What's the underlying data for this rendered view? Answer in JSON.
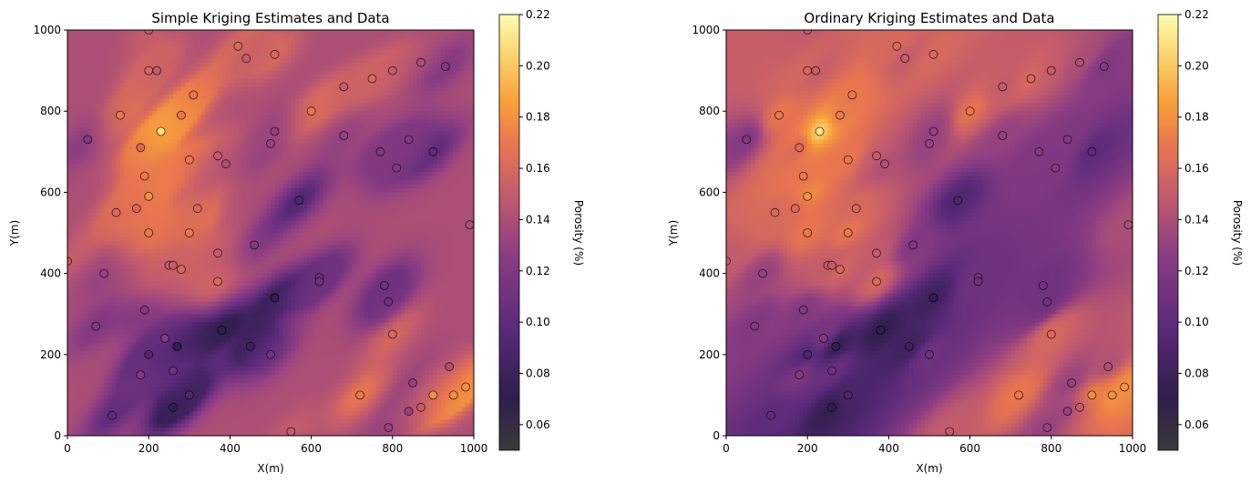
{
  "chart_data": [
    {
      "type": "heatmap",
      "title": "Simple Kriging Estimates and Data",
      "xlabel": "X(m)",
      "ylabel": "Y(m)",
      "xlim": [
        0,
        1000
      ],
      "ylim": [
        0,
        1000
      ],
      "xticks": [
        "0",
        "200",
        "400",
        "600",
        "800",
        "1000"
      ],
      "yticks": [
        "0",
        "200",
        "400",
        "600",
        "800",
        "1000"
      ],
      "mean": 0.14,
      "colorbar": {
        "label": "Porosity (%)",
        "range": [
          0.05,
          0.22
        ],
        "ticks": [
          "0.06",
          "0.08",
          "0.10",
          "0.12",
          "0.14",
          "0.16",
          "0.18",
          "0.20",
          "0.22"
        ]
      }
    },
    {
      "type": "heatmap",
      "title": "Ordinary Kriging Estimates and Data",
      "xlabel": "X(m)",
      "ylabel": "Y(m)",
      "xlim": [
        0,
        1000
      ],
      "ylim": [
        0,
        1000
      ],
      "xticks": [
        "0",
        "200",
        "400",
        "600",
        "800",
        "1000"
      ],
      "yticks": [
        "0",
        "200",
        "400",
        "600",
        "800",
        "1000"
      ],
      "colorbar": {
        "label": "Porosity (%)",
        "range": [
          0.05,
          0.22
        ],
        "ticks": [
          "0.06",
          "0.08",
          "0.10",
          "0.12",
          "0.14",
          "0.16",
          "0.18",
          "0.20",
          "0.22"
        ]
      }
    }
  ],
  "wells": [
    {
      "x": 200,
      "y": 1000,
      "v": 0.15
    },
    {
      "x": 420,
      "y": 960,
      "v": 0.16
    },
    {
      "x": 510,
      "y": 940,
      "v": 0.16
    },
    {
      "x": 440,
      "y": 930,
      "v": 0.15
    },
    {
      "x": 200,
      "y": 900,
      "v": 0.16
    },
    {
      "x": 220,
      "y": 900,
      "v": 0.15
    },
    {
      "x": 870,
      "y": 920,
      "v": 0.14
    },
    {
      "x": 930,
      "y": 910,
      "v": 0.12
    },
    {
      "x": 800,
      "y": 900,
      "v": 0.15
    },
    {
      "x": 750,
      "y": 880,
      "v": 0.16
    },
    {
      "x": 680,
      "y": 860,
      "v": 0.15
    },
    {
      "x": 130,
      "y": 790,
      "v": 0.17
    },
    {
      "x": 280,
      "y": 790,
      "v": 0.17
    },
    {
      "x": 310,
      "y": 840,
      "v": 0.17
    },
    {
      "x": 600,
      "y": 800,
      "v": 0.17
    },
    {
      "x": 230,
      "y": 750,
      "v": 0.21
    },
    {
      "x": 50,
      "y": 730,
      "v": 0.12
    },
    {
      "x": 510,
      "y": 750,
      "v": 0.13
    },
    {
      "x": 500,
      "y": 720,
      "v": 0.13
    },
    {
      "x": 680,
      "y": 740,
      "v": 0.13
    },
    {
      "x": 840,
      "y": 730,
      "v": 0.12
    },
    {
      "x": 180,
      "y": 710,
      "v": 0.16
    },
    {
      "x": 770,
      "y": 700,
      "v": 0.12
    },
    {
      "x": 900,
      "y": 700,
      "v": 0.1
    },
    {
      "x": 300,
      "y": 680,
      "v": 0.17
    },
    {
      "x": 370,
      "y": 690,
      "v": 0.15
    },
    {
      "x": 390,
      "y": 670,
      "v": 0.14
    },
    {
      "x": 810,
      "y": 660,
      "v": 0.12
    },
    {
      "x": 190,
      "y": 640,
      "v": 0.17
    },
    {
      "x": 200,
      "y": 590,
      "v": 0.18
    },
    {
      "x": 570,
      "y": 580,
      "v": 0.09
    },
    {
      "x": 170,
      "y": 560,
      "v": 0.16
    },
    {
      "x": 120,
      "y": 550,
      "v": 0.16
    },
    {
      "x": 320,
      "y": 560,
      "v": 0.16
    },
    {
      "x": 990,
      "y": 520,
      "v": 0.14
    },
    {
      "x": 200,
      "y": 500,
      "v": 0.17
    },
    {
      "x": 300,
      "y": 500,
      "v": 0.17
    },
    {
      "x": 460,
      "y": 470,
      "v": 0.12
    },
    {
      "x": 370,
      "y": 450,
      "v": 0.15
    },
    {
      "x": 0,
      "y": 430,
      "v": 0.15
    },
    {
      "x": 250,
      "y": 420,
      "v": 0.15
    },
    {
      "x": 260,
      "y": 420,
      "v": 0.15
    },
    {
      "x": 280,
      "y": 410,
      "v": 0.16
    },
    {
      "x": 90,
      "y": 400,
      "v": 0.13
    },
    {
      "x": 620,
      "y": 390,
      "v": 0.11
    },
    {
      "x": 620,
      "y": 380,
      "v": 0.11
    },
    {
      "x": 370,
      "y": 380,
      "v": 0.16
    },
    {
      "x": 780,
      "y": 370,
      "v": 0.11
    },
    {
      "x": 510,
      "y": 340,
      "v": 0.08
    },
    {
      "x": 510,
      "y": 340,
      "v": 0.07
    },
    {
      "x": 790,
      "y": 330,
      "v": 0.11
    },
    {
      "x": 190,
      "y": 310,
      "v": 0.12
    },
    {
      "x": 70,
      "y": 270,
      "v": 0.12
    },
    {
      "x": 380,
      "y": 260,
      "v": 0.07
    },
    {
      "x": 380,
      "y": 260,
      "v": 0.07
    },
    {
      "x": 800,
      "y": 250,
      "v": 0.16
    },
    {
      "x": 240,
      "y": 240,
      "v": 0.12
    },
    {
      "x": 270,
      "y": 220,
      "v": 0.07
    },
    {
      "x": 270,
      "y": 220,
      "v": 0.07
    },
    {
      "x": 450,
      "y": 220,
      "v": 0.08
    },
    {
      "x": 200,
      "y": 200,
      "v": 0.09
    },
    {
      "x": 500,
      "y": 200,
      "v": 0.11
    },
    {
      "x": 940,
      "y": 170,
      "v": 0.14
    },
    {
      "x": 260,
      "y": 160,
      "v": 0.11
    },
    {
      "x": 180,
      "y": 150,
      "v": 0.12
    },
    {
      "x": 850,
      "y": 130,
      "v": 0.13
    },
    {
      "x": 300,
      "y": 100,
      "v": 0.09
    },
    {
      "x": 720,
      "y": 100,
      "v": 0.17
    },
    {
      "x": 900,
      "y": 100,
      "v": 0.18
    },
    {
      "x": 950,
      "y": 100,
      "v": 0.18
    },
    {
      "x": 980,
      "y": 120,
      "v": 0.18
    },
    {
      "x": 260,
      "y": 70,
      "v": 0.07
    },
    {
      "x": 870,
      "y": 70,
      "v": 0.15
    },
    {
      "x": 840,
      "y": 60,
      "v": 0.13
    },
    {
      "x": 110,
      "y": 50,
      "v": 0.1
    },
    {
      "x": 790,
      "y": 20,
      "v": 0.13
    },
    {
      "x": 550,
      "y": 10,
      "v": 0.15
    }
  ]
}
